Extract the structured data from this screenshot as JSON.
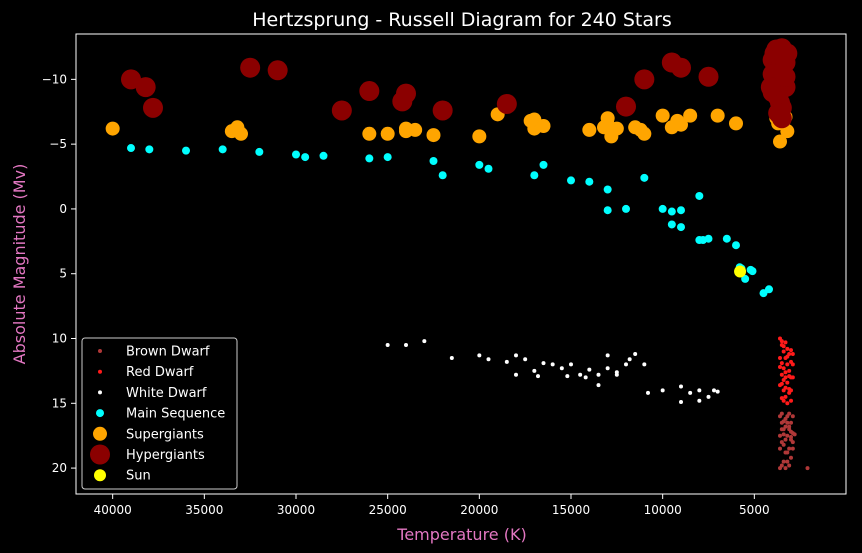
{
  "chart_data": {
    "type": "scatter",
    "title": "Hertzsprung - Russell Diagram for 240 Stars",
    "xlabel": "Temperature (K)",
    "ylabel": "Absolute Magnitude (Mv)",
    "xlim": [
      42000,
      0
    ],
    "ylim": [
      22,
      -13.5
    ],
    "x_ticks": [
      40000,
      35000,
      30000,
      25000,
      20000,
      15000,
      10000,
      5000
    ],
    "x_tick_labels": [
      "40000",
      "35000",
      "30000",
      "25000",
      "20000",
      "15000",
      "10000",
      "5000"
    ],
    "y_ticks": [
      -10,
      -5,
      0,
      5,
      10,
      15,
      20
    ],
    "y_tick_labels": [
      "−10",
      "−5",
      "0",
      "5",
      "10",
      "15",
      "20"
    ],
    "grid": false,
    "legend_position": "bottom-left",
    "background_color": "#000000",
    "text_color": "#ffffff",
    "axis_label_color": "#e377c2",
    "series": [
      {
        "name": "Brown Dwarf",
        "color": "#b03838",
        "size": 2,
        "points": [
          [
            3600,
            16.0
          ],
          [
            3500,
            16.5
          ],
          [
            3400,
            17.0
          ],
          [
            3300,
            16.2
          ],
          [
            3200,
            17.5
          ],
          [
            3100,
            16.8
          ],
          [
            3000,
            17.2
          ],
          [
            3500,
            18.0
          ],
          [
            3400,
            19.5
          ],
          [
            3300,
            17.8
          ],
          [
            3200,
            16.5
          ],
          [
            3100,
            18.5
          ],
          [
            3000,
            19.2
          ],
          [
            2900,
            16.0
          ],
          [
            3600,
            17.5
          ],
          [
            3500,
            19.8
          ],
          [
            3400,
            16.4
          ],
          [
            3300,
            18.8
          ],
          [
            3200,
            19.5
          ],
          [
            3100,
            17.0
          ],
          [
            3000,
            17.6
          ],
          [
            2900,
            18.0
          ],
          [
            3600,
            20.0
          ],
          [
            3500,
            17.0
          ],
          [
            3400,
            18.2
          ],
          [
            3300,
            16.8
          ],
          [
            3200,
            18.8
          ],
          [
            3100,
            19.8
          ],
          [
            3000,
            16.5
          ],
          [
            2900,
            17.3
          ],
          [
            2800,
            17.4
          ],
          [
            2100,
            20.0
          ],
          [
            3300,
            20.0
          ],
          [
            3500,
            15.8
          ],
          [
            3200,
            16.0
          ],
          [
            3100,
            15.8
          ],
          [
            3000,
            17.8
          ],
          [
            3400,
            17.4
          ],
          [
            3600,
            18.5
          ],
          [
            2900,
            18.5
          ]
        ]
      },
      {
        "name": "Red Dwarf",
        "color": "#ff1a1a",
        "size": 2,
        "points": [
          [
            3600,
            10.0
          ],
          [
            3500,
            10.5
          ],
          [
            3400,
            11.0
          ],
          [
            3300,
            11.5
          ],
          [
            3200,
            12.0
          ],
          [
            3100,
            12.5
          ],
          [
            3000,
            13.0
          ],
          [
            3500,
            13.5
          ],
          [
            3400,
            14.0
          ],
          [
            3300,
            14.5
          ],
          [
            3200,
            15.0
          ],
          [
            3100,
            11.2
          ],
          [
            3000,
            11.8
          ],
          [
            3600,
            12.2
          ],
          [
            3500,
            12.8
          ],
          [
            3400,
            13.2
          ],
          [
            3300,
            13.8
          ],
          [
            3200,
            10.8
          ],
          [
            3100,
            14.2
          ],
          [
            3000,
            14.8
          ],
          [
            2900,
            12.0
          ],
          [
            3600,
            11.5
          ],
          [
            3500,
            14.6
          ],
          [
            3400,
            10.6
          ],
          [
            3300,
            12.6
          ],
          [
            3200,
            13.4
          ],
          [
            3100,
            13.9
          ],
          [
            3000,
            10.9
          ],
          [
            2900,
            13.0
          ],
          [
            3500,
            11.9
          ],
          [
            3400,
            12.3
          ],
          [
            3300,
            10.3
          ],
          [
            3200,
            11.4
          ],
          [
            3100,
            12.9
          ],
          [
            3000,
            14.0
          ],
          [
            2900,
            11.2
          ],
          [
            3600,
            13.6
          ],
          [
            3500,
            10.2
          ],
          [
            3400,
            14.8
          ],
          [
            3300,
            13.0
          ]
        ]
      },
      {
        "name": "White Dwarf",
        "color": "#ffffff",
        "size": 2,
        "points": [
          [
            25000,
            10.5
          ],
          [
            24000,
            10.5
          ],
          [
            23000,
            10.2
          ],
          [
            21500,
            11.5
          ],
          [
            20000,
            11.3
          ],
          [
            19500,
            11.6
          ],
          [
            18500,
            11.8
          ],
          [
            18000,
            11.3
          ],
          [
            17500,
            11.6
          ],
          [
            17000,
            12.5
          ],
          [
            16500,
            11.9
          ],
          [
            16000,
            12.0
          ],
          [
            15500,
            12.3
          ],
          [
            15000,
            12.0
          ],
          [
            14500,
            12.8
          ],
          [
            14000,
            12.4
          ],
          [
            13500,
            12.8
          ],
          [
            13000,
            11.3
          ],
          [
            13000,
            12.3
          ],
          [
            12500,
            12.6
          ],
          [
            12000,
            12.0
          ],
          [
            11500,
            11.2
          ],
          [
            11000,
            12.0
          ],
          [
            10000,
            14.0
          ],
          [
            9000,
            13.7
          ],
          [
            8500,
            14.2
          ],
          [
            8000,
            14.0
          ],
          [
            7500,
            14.5
          ],
          [
            7000,
            14.1
          ],
          [
            18000,
            12.8
          ],
          [
            16800,
            12.9
          ],
          [
            15200,
            12.9
          ],
          [
            14200,
            13.0
          ],
          [
            13500,
            13.6
          ],
          [
            12500,
            12.8
          ],
          [
            11800,
            11.6
          ],
          [
            10800,
            14.2
          ],
          [
            9000,
            14.9
          ],
          [
            8000,
            14.8
          ],
          [
            7200,
            14.0
          ]
        ]
      },
      {
        "name": "Main Sequence",
        "color": "#00ffff",
        "size": 4,
        "points": [
          [
            39000,
            -4.7
          ],
          [
            38000,
            -4.6
          ],
          [
            36000,
            -4.5
          ],
          [
            34000,
            -4.6
          ],
          [
            32000,
            -4.4
          ],
          [
            30000,
            -4.2
          ],
          [
            29500,
            -4.0
          ],
          [
            28500,
            -4.1
          ],
          [
            26000,
            -3.9
          ],
          [
            25000,
            -4.0
          ],
          [
            22500,
            -3.7
          ],
          [
            22000,
            -2.6
          ],
          [
            20000,
            -3.4
          ],
          [
            19500,
            -3.1
          ],
          [
            17000,
            -2.6
          ],
          [
            16500,
            -3.4
          ],
          [
            15000,
            -2.2
          ],
          [
            14000,
            -2.1
          ],
          [
            13000,
            -1.5
          ],
          [
            13000,
            0.1
          ],
          [
            12000,
            0.0
          ],
          [
            11000,
            -2.4
          ],
          [
            10000,
            0.0
          ],
          [
            9500,
            0.2
          ],
          [
            9000,
            0.1
          ],
          [
            9500,
            1.2
          ],
          [
            9000,
            1.4
          ],
          [
            8000,
            -1.0
          ],
          [
            7500,
            2.3
          ],
          [
            6500,
            2.3
          ],
          [
            6000,
            2.8
          ],
          [
            5800,
            4.5
          ],
          [
            5700,
            4.6
          ],
          [
            5100,
            4.8
          ],
          [
            5200,
            4.7
          ],
          [
            5500,
            5.4
          ],
          [
            4500,
            6.5
          ],
          [
            4200,
            6.2
          ],
          [
            7800,
            2.4
          ],
          [
            8000,
            2.4
          ]
        ]
      },
      {
        "name": "Supergiants",
        "color": "#ffa500",
        "size": 7,
        "points": [
          [
            40000,
            -6.2
          ],
          [
            33500,
            -6.0
          ],
          [
            33000,
            -5.8
          ],
          [
            33200,
            -6.3
          ],
          [
            26000,
            -5.8
          ],
          [
            25000,
            -5.8
          ],
          [
            24000,
            -6.0
          ],
          [
            23500,
            -6.1
          ],
          [
            22500,
            -5.7
          ],
          [
            20000,
            -5.6
          ],
          [
            19000,
            -7.3
          ],
          [
            17000,
            -6.9
          ],
          [
            16500,
            -6.4
          ],
          [
            17000,
            -6.2
          ],
          [
            14000,
            -6.1
          ],
          [
            13000,
            -7.0
          ],
          [
            12500,
            -6.2
          ],
          [
            11500,
            -6.3
          ],
          [
            11000,
            -5.8
          ],
          [
            10000,
            -7.2
          ],
          [
            9500,
            -6.3
          ],
          [
            9000,
            -6.5
          ],
          [
            8500,
            -7.2
          ],
          [
            7000,
            -7.2
          ],
          [
            6000,
            -6.6
          ],
          [
            3800,
            -7.3
          ],
          [
            3600,
            -5.2
          ],
          [
            3500,
            -7.4
          ],
          [
            3400,
            -6.8
          ],
          [
            3200,
            -6.0
          ],
          [
            3800,
            -7.0
          ],
          [
            13000,
            -6.5
          ],
          [
            12800,
            -5.6
          ],
          [
            11200,
            -6.1
          ],
          [
            9200,
            -6.8
          ],
          [
            3700,
            -6.6
          ],
          [
            3300,
            -7.1
          ],
          [
            24000,
            -6.2
          ],
          [
            17200,
            -6.8
          ],
          [
            13200,
            -6.3
          ]
        ]
      },
      {
        "name": "Hypergiants",
        "color": "#8b0000",
        "size": 10,
        "points": [
          [
            39000,
            -10.0
          ],
          [
            38200,
            -9.4
          ],
          [
            37800,
            -7.8
          ],
          [
            32500,
            -10.9
          ],
          [
            31000,
            -10.7
          ],
          [
            27500,
            -7.6
          ],
          [
            26000,
            -9.1
          ],
          [
            24200,
            -8.3
          ],
          [
            24000,
            -8.9
          ],
          [
            22000,
            -7.6
          ],
          [
            18500,
            -8.1
          ],
          [
            12000,
            -7.9
          ],
          [
            11000,
            -10.0
          ],
          [
            9500,
            -11.3
          ],
          [
            9000,
            -10.9
          ],
          [
            7500,
            -10.2
          ],
          [
            4000,
            -11.5
          ],
          [
            4000,
            -9.0
          ],
          [
            3800,
            -12.3
          ],
          [
            3600,
            -11.0
          ],
          [
            3500,
            -9.6
          ],
          [
            3500,
            -7.0
          ],
          [
            3600,
            -8.2
          ],
          [
            3800,
            -11.0
          ],
          [
            3500,
            -10.6
          ],
          [
            3300,
            -9.4
          ],
          [
            3600,
            -10.8
          ],
          [
            3300,
            -11.3
          ],
          [
            3700,
            -8.6
          ],
          [
            3200,
            -12.0
          ],
          [
            3500,
            -7.8
          ],
          [
            4000,
            -10.4
          ],
          [
            3800,
            -8.8
          ],
          [
            3400,
            -11.9
          ],
          [
            3600,
            -9.8
          ],
          [
            3700,
            -7.4
          ],
          [
            3900,
            -12.0
          ],
          [
            4100,
            -9.4
          ],
          [
            3300,
            -10.2
          ],
          [
            3500,
            -12.4
          ]
        ]
      },
      {
        "name": "Sun",
        "color": "#ffff00",
        "size": 6,
        "points": [
          [
            5778,
            4.83
          ]
        ]
      }
    ]
  }
}
